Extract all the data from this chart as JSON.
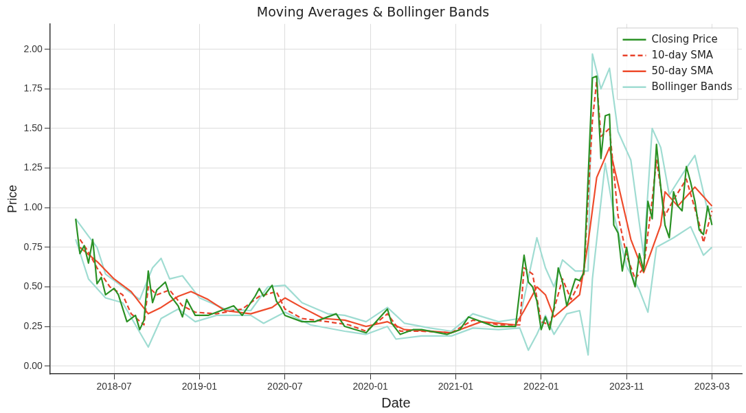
{
  "chart_data": {
    "type": "line",
    "title": "Moving Averages & Bollinger Bands",
    "xlabel": "Date",
    "ylabel": "Price",
    "categories": [
      null,
      null,
      null,
      null,
      null,
      null,
      null,
      null,
      null,
      "2018-07",
      null,
      null,
      null,
      null,
      null,
      null,
      null,
      null,
      null,
      null,
      null,
      null,
      null,
      null,
      null,
      null,
      null,
      null,
      null,
      "2019-01",
      null,
      null,
      null,
      null,
      null,
      null,
      null,
      null,
      null,
      null,
      null,
      null,
      null,
      null,
      null,
      null,
      null,
      null,
      null,
      "2020-07",
      null,
      null,
      null,
      null,
      null,
      null,
      null,
      null,
      null,
      null,
      null,
      null,
      null,
      null,
      null,
      null,
      null,
      null,
      null,
      "2020-01",
      null,
      null,
      null,
      null,
      null,
      null,
      null,
      null,
      null,
      null,
      null,
      null,
      null,
      null,
      null,
      null,
      null,
      null,
      null,
      "2021-01",
      null,
      null,
      null,
      null,
      null,
      null,
      null,
      null,
      null,
      null,
      null,
      null,
      null,
      null,
      null,
      null,
      null,
      null,
      null,
      "2022-01",
      null,
      null,
      null,
      null,
      null,
      null,
      null,
      null,
      null,
      null,
      null,
      null,
      null,
      null,
      null,
      null,
      null,
      null,
      null,
      "2023-11",
      null,
      null,
      null,
      null,
      null,
      null,
      null,
      null,
      null,
      null,
      null,
      null,
      null,
      null,
      null,
      null,
      null,
      null,
      null,
      "2023-03"
    ],
    "ylim": [
      -0.05,
      2.16
    ],
    "yticks": [
      {
        "value": 0,
        "label": "0.00"
      },
      {
        "value": 0.25,
        "label": "0.25"
      },
      {
        "value": 0.5,
        "label": "0.50"
      },
      {
        "value": 0.75,
        "label": "0.75"
      },
      {
        "value": 1,
        "label": "1.00"
      },
      {
        "value": 1.25,
        "label": "1.25"
      },
      {
        "value": 1.5,
        "label": "1.50"
      },
      {
        "value": 1.75,
        "label": "1.75"
      },
      {
        "value": 2,
        "label": "2.00"
      }
    ],
    "grid": true,
    "legend": "top right",
    "marker": "none",
    "series": [
      {
        "name": "Closing Price",
        "color": "#2a9124",
        "line_style": "solid",
        "values": [
          0.93,
          0.71,
          0.76,
          0.65,
          0.8,
          0.52,
          0.56,
          0.45,
          null,
          0.49,
          0.45,
          null,
          0.28,
          null,
          0.32,
          0.23,
          0.29,
          0.6,
          0.4,
          0.48,
          null,
          0.53,
          0.45,
          null,
          0.38,
          0.31,
          0.42,
          null,
          0.32,
          null,
          null,
          0.32,
          null,
          null,
          null,
          null,
          null,
          0.38,
          null,
          0.32,
          null,
          null,
          0.44,
          0.49,
          0.44,
          null,
          0.51,
          0.41,
          0.37,
          0.32,
          null,
          null,
          null,
          0.28,
          null,
          null,
          0.28,
          null,
          null,
          null,
          null,
          0.33,
          null,
          0.25,
          null,
          null,
          null,
          null,
          0.21,
          null,
          0.27,
          null,
          null,
          0.36,
          0.27,
          null,
          0.2,
          null,
          null,
          0.23,
          null,
          0.23,
          null,
          null,
          null,
          null,
          null,
          0.2,
          null,
          null,
          0.23,
          null,
          0.31,
          null,
          null,
          0.28,
          null,
          null,
          0.25,
          null,
          null,
          null,
          null,
          0.25,
          0.48,
          0.7,
          0.53,
          0.5,
          0.41,
          0.23,
          0.31,
          0.23,
          0.37,
          0.62,
          0.53,
          0.38,
          null,
          0.55,
          0.54,
          0.59,
          1.19,
          1.82,
          1.83,
          1.31,
          1.58,
          1.59,
          0.89,
          0.84,
          0.6,
          0.75,
          0.59,
          0.5,
          0.71,
          0.6,
          1.04,
          0.93,
          1.4,
          1.13,
          0.89,
          0.81,
          1.1,
          1.01,
          0.98,
          1.26,
          1.16,
          1.04,
          0.86,
          0.83,
          1.01,
          0.89
        ]
      },
      {
        "name": "10-day SMA",
        "color": "#e8412a",
        "line_style": "dashed",
        "values": [
          null,
          0.8,
          null,
          0.72,
          null,
          0.62,
          null,
          null,
          0.5,
          null,
          null,
          0.45,
          null,
          0.33,
          null,
          null,
          0.26,
          0.5,
          null,
          0.45,
          null,
          null,
          0.48,
          null,
          null,
          0.38,
          null,
          null,
          0.34,
          null,
          null,
          null,
          null,
          0.33,
          null,
          null,
          null,
          null,
          null,
          0.36,
          null,
          null,
          null,
          0.44,
          null,
          null,
          null,
          0.47,
          null,
          0.36,
          null,
          null,
          null,
          0.3,
          null,
          null,
          null,
          null,
          null,
          0.28,
          null,
          null,
          null,
          null,
          0.26,
          null,
          null,
          null,
          0.22,
          null,
          null,
          null,
          null,
          0.33,
          null,
          null,
          0.22,
          null,
          null,
          null,
          null,
          0.22,
          null,
          null,
          null,
          null,
          null,
          null,
          0.21,
          null,
          null,
          null,
          null,
          0.29,
          null,
          null,
          null,
          null,
          null,
          0.26,
          null,
          null,
          null,
          null,
          0.26,
          0.62,
          null,
          0.58,
          null,
          0.28,
          null,
          0.26,
          null,
          null,
          0.55,
          null,
          0.42,
          null,
          null,
          0.58,
          null,
          1.55,
          1.8,
          1.45,
          null,
          1.5,
          null,
          0.95,
          null,
          0.7,
          null,
          0.55,
          null,
          0.62,
          null,
          1.05,
          1.3,
          null,
          0.95,
          null,
          1.05,
          null,
          null,
          1.18,
          null,
          null,
          0.9,
          0.78,
          null,
          0.98
        ]
      },
      {
        "name": "50-day SMA",
        "color": "#ee4b2b",
        "line_style": "solid",
        "values": [
          null,
          0.75,
          null,
          null,
          null,
          0.66,
          null,
          null,
          null,
          0.55,
          null,
          null,
          null,
          0.47,
          null,
          null,
          null,
          0.33,
          null,
          null,
          0.37,
          null,
          null,
          null,
          0.44,
          null,
          null,
          0.47,
          null,
          null,
          null,
          0.42,
          null,
          null,
          null,
          0.35,
          null,
          null,
          null,
          null,
          null,
          0.33,
          null,
          null,
          null,
          null,
          0.37,
          null,
          null,
          0.43,
          null,
          null,
          null,
          0.37,
          null,
          null,
          null,
          null,
          0.3,
          null,
          null,
          null,
          null,
          0.29,
          null,
          null,
          null,
          null,
          0.25,
          null,
          null,
          null,
          null,
          0.28,
          null,
          null,
          null,
          0.23,
          null,
          null,
          null,
          null,
          null,
          0.22,
          null,
          null,
          null,
          null,
          0.21,
          null,
          null,
          null,
          null,
          null,
          null,
          0.28,
          null,
          null,
          null,
          null,
          null,
          null,
          null,
          0.26,
          null,
          0.35,
          null,
          null,
          0.5,
          null,
          0.45,
          null,
          0.31,
          null,
          null,
          0.38,
          null,
          null,
          0.45,
          null,
          0.78,
          null,
          1.19,
          null,
          null,
          1.38,
          null,
          1.15,
          null,
          null,
          0.8,
          null,
          null,
          0.59,
          null,
          null,
          null,
          0.89,
          1.1,
          null,
          null,
          1.01,
          null,
          null,
          null,
          1.13,
          null,
          null,
          null,
          1.01
        ]
      },
      {
        "name": "Bollinger Bands",
        "color": "#9fdcd2",
        "line_style": "solid",
        "values": [
          0.93,
          null,
          null,
          0.82,
          null,
          0.75,
          null,
          0.58,
          null,
          null,
          null,
          0.5,
          null,
          null,
          null,
          0.42,
          null,
          null,
          0.62,
          null,
          0.68,
          null,
          0.55,
          null,
          null,
          0.57,
          null,
          null,
          null,
          0.43,
          null,
          null,
          null,
          null,
          null,
          0.36,
          null,
          null,
          null,
          null,
          null,
          0.35,
          null,
          null,
          null,
          0.5,
          null,
          null,
          null,
          0.51,
          null,
          null,
          null,
          0.4,
          null,
          null,
          null,
          null,
          null,
          0.33,
          null,
          null,
          null,
          0.32,
          null,
          null,
          null,
          null,
          0.28,
          null,
          null,
          null,
          null,
          0.37,
          null,
          null,
          null,
          0.27,
          null,
          null,
          null,
          null,
          null,
          0.24,
          null,
          null,
          null,
          null,
          0.22,
          null,
          null,
          null,
          null,
          0.33,
          null,
          null,
          null,
          null,
          null,
          0.28,
          null,
          null,
          null,
          null,
          0.3,
          null,
          null,
          null,
          0.81,
          null,
          0.62,
          null,
          0.5,
          null,
          0.67,
          null,
          null,
          0.6,
          null,
          null,
          0.6,
          1.97,
          null,
          1.75,
          null,
          1.88,
          null,
          1.48,
          null,
          null,
          1.3,
          null,
          null,
          0.7,
          null,
          1.5,
          null,
          1.38,
          null,
          1.08,
          null,
          null,
          null,
          1.25,
          null,
          1.33,
          null,
          null,
          0.98,
          1.0
        ]
      },
      {
        "color": "#9fdcd2",
        "line_style": "solid",
        "values": [
          0.8,
          null,
          null,
          0.55,
          null,
          null,
          null,
          0.43,
          null,
          null,
          null,
          0.4,
          null,
          null,
          0.26,
          null,
          null,
          0.12,
          null,
          null,
          0.3,
          null,
          null,
          null,
          0.36,
          null,
          null,
          null,
          0.28,
          null,
          null,
          null,
          null,
          0.32,
          null,
          null,
          null,
          null,
          null,
          null,
          null,
          0.32,
          null,
          null,
          0.27,
          null,
          null,
          null,
          null,
          0.34,
          null,
          null,
          null,
          null,
          null,
          0.26,
          null,
          null,
          null,
          null,
          null,
          null,
          null,
          0.22,
          null,
          null,
          null,
          null,
          0.2,
          null,
          null,
          null,
          null,
          0.25,
          null,
          0.17,
          null,
          null,
          null,
          null,
          null,
          0.19,
          null,
          null,
          null,
          null,
          null,
          null,
          0.19,
          null,
          null,
          null,
          null,
          0.24,
          null,
          null,
          null,
          null,
          null,
          0.23,
          null,
          null,
          null,
          null,
          0.24,
          null,
          0.1,
          null,
          0.2,
          null,
          0.32,
          null,
          0.2,
          null,
          null,
          0.33,
          null,
          null,
          0.35,
          null,
          0.07,
          0.55,
          null,
          null,
          1.28,
          null,
          0.96,
          null,
          null,
          0.63,
          null,
          null,
          0.48,
          null,
          0.34,
          null,
          0.75,
          null,
          null,
          null,
          0.81,
          null,
          null,
          null,
          0.88,
          null,
          null,
          0.7,
          null,
          0.75
        ]
      }
    ]
  }
}
